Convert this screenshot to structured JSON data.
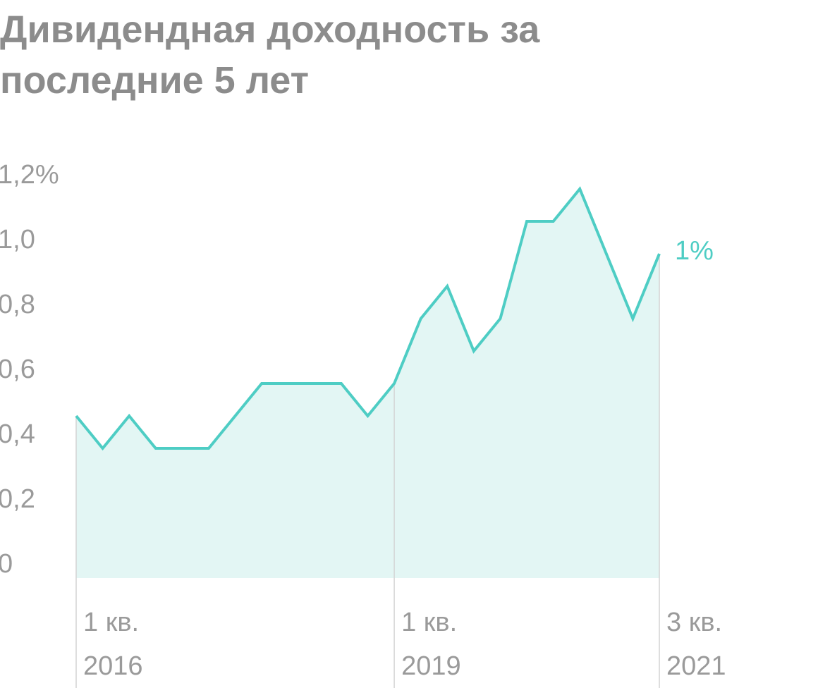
{
  "chart_data": {
    "type": "line",
    "title": "Дивидендная доходность за последние 5 лет",
    "categories": [
      "1 кв. 2016",
      null,
      null,
      null,
      null,
      null,
      null,
      null,
      null,
      null,
      null,
      null,
      "1 кв. 2019",
      null,
      null,
      null,
      null,
      null,
      null,
      null,
      null,
      null,
      "3 кв. 2021"
    ],
    "series": [
      {
        "name": "Дивидендная доходность",
        "color": "#4ecdc4",
        "values": [
          0.5,
          0.4,
          0.5,
          0.4,
          0.4,
          0.4,
          0.5,
          0.6,
          0.6,
          0.6,
          0.6,
          0.5,
          0.6,
          0.8,
          0.9,
          0.7,
          0.8,
          1.1,
          1.1,
          1.2,
          1.0,
          0.8,
          1.0
        ],
        "value_labels": [
          null,
          null,
          null,
          null,
          null,
          null,
          null,
          null,
          null,
          null,
          null,
          null,
          null,
          null,
          null,
          null,
          null,
          null,
          null,
          null,
          null,
          null,
          "1%"
        ]
      }
    ],
    "ylim": [
      0,
      1.2
    ],
    "yticks": [
      0,
      {
        "value": 0.2,
        "label": "0,2"
      },
      {
        "value": 0.4,
        "label": "0,4"
      },
      {
        "value": 0.6,
        "label": "0,6"
      },
      {
        "value": 0.8,
        "label": "0,8"
      },
      {
        "value": 1.0,
        "label": "1,0"
      },
      {
        "value": 1.2,
        "label": "1,2%"
      }
    ],
    "area_color": "#e3f6f4",
    "grid": false
  }
}
